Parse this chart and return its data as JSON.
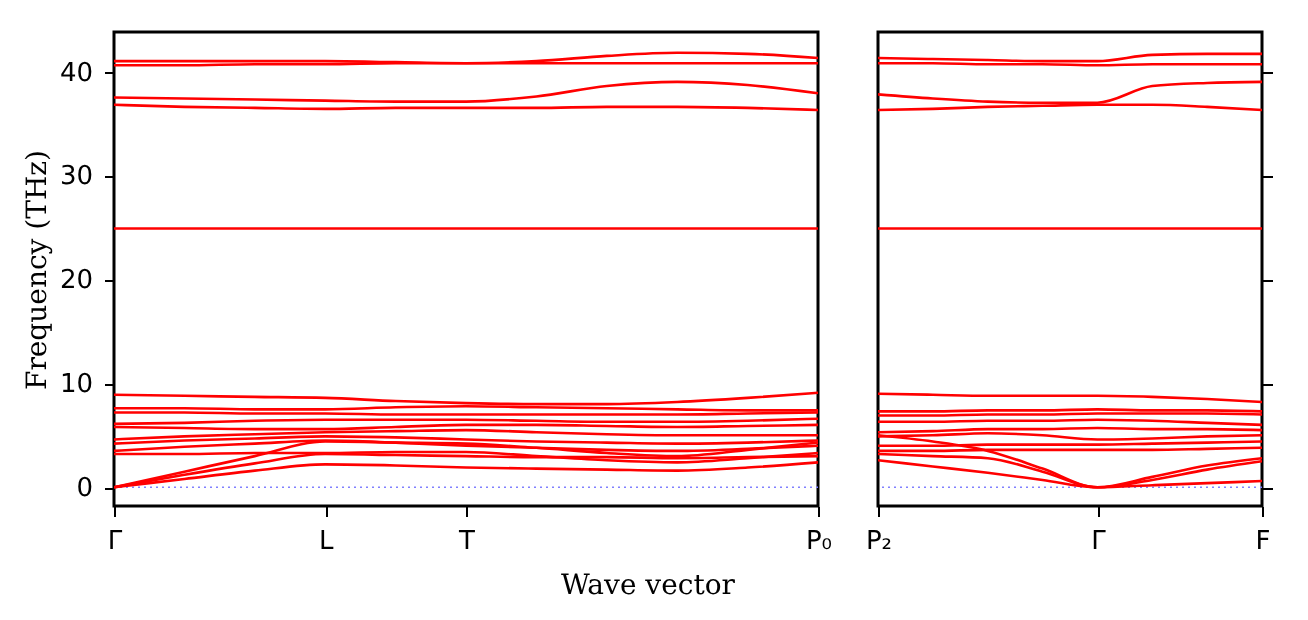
{
  "chart_data": [
    {
      "type": "line",
      "xlabel": "Wave vector",
      "ylabel": "Frequency (THz)",
      "categories": [
        "Γ",
        null,
        null,
        "L",
        null,
        "T",
        null,
        null,
        null,
        null,
        "P₀"
      ],
      "ylim": [
        -1.8,
        43.8
      ],
      "yticks": [
        0,
        10,
        20,
        30,
        40
      ],
      "ref_lines": [
        {
          "axis": "y",
          "value": 0,
          "color": "#8080ff",
          "line_style": "dotted"
        }
      ],
      "series": [
        {
          "color": "#ff0000",
          "values": [
            41.0,
            41.0,
            41.0,
            41.0,
            40.9,
            40.8,
            41.0,
            41.5,
            41.8,
            41.7,
            41.3
          ]
        },
        {
          "color": "#ff0000",
          "values": [
            40.6,
            40.6,
            40.7,
            40.7,
            40.8,
            40.8,
            40.8,
            40.8,
            40.8,
            40.8,
            40.8
          ]
        },
        {
          "color": "#ff0000",
          "values": [
            37.5,
            37.4,
            37.3,
            37.2,
            37.1,
            37.1,
            37.6,
            38.6,
            39.0,
            38.7,
            37.9
          ]
        },
        {
          "color": "#ff0000",
          "values": [
            36.8,
            36.6,
            36.5,
            36.4,
            36.5,
            36.5,
            36.5,
            36.6,
            36.6,
            36.5,
            36.3
          ]
        },
        {
          "color": "#ff0000",
          "values": [
            24.9,
            24.9,
            24.9,
            24.9,
            24.9,
            24.9,
            24.9,
            24.9,
            24.9,
            24.9,
            24.9
          ]
        },
        {
          "color": "#ff0000",
          "values": [
            8.9,
            8.8,
            8.7,
            8.6,
            8.3,
            8.1,
            8.0,
            8.0,
            8.2,
            8.6,
            9.1
          ]
        },
        {
          "color": "#ff0000",
          "values": [
            7.6,
            7.6,
            7.5,
            7.5,
            7.7,
            7.8,
            7.7,
            7.6,
            7.5,
            7.4,
            7.4
          ]
        },
        {
          "color": "#ff0000",
          "values": [
            7.2,
            7.2,
            7.1,
            7.1,
            7.0,
            7.0,
            7.0,
            7.0,
            7.0,
            7.1,
            7.2
          ]
        },
        {
          "color": "#ff0000",
          "values": [
            6.1,
            6.2,
            6.4,
            6.5,
            6.5,
            6.5,
            6.4,
            6.3,
            6.3,
            6.4,
            6.6
          ]
        },
        {
          "color": "#ff0000",
          "values": [
            5.8,
            5.7,
            5.6,
            5.6,
            5.8,
            6.0,
            6.0,
            5.9,
            5.8,
            5.9,
            6.0
          ]
        },
        {
          "color": "#ff0000",
          "values": [
            4.6,
            4.9,
            5.1,
            5.3,
            5.4,
            5.5,
            5.3,
            5.1,
            5.0,
            5.0,
            5.0
          ]
        },
        {
          "color": "#ff0000",
          "values": [
            4.2,
            4.5,
            4.7,
            4.9,
            4.8,
            4.6,
            4.4,
            4.3,
            4.2,
            4.3,
            4.5
          ]
        },
        {
          "color": "#ff0000",
          "values": [
            3.5,
            3.9,
            4.2,
            4.5,
            4.3,
            4.0,
            3.8,
            3.6,
            3.5,
            3.7,
            4.0
          ]
        },
        {
          "color": "#ff0000",
          "values": [
            3.2,
            3.2,
            3.3,
            3.3,
            3.4,
            3.4,
            3.0,
            2.6,
            2.4,
            2.8,
            3.3
          ]
        },
        {
          "color": "#ff0000",
          "values": [
            0,
            1.5,
            3.0,
            4.4,
            4.3,
            4.2,
            3.8,
            3.3,
            3.0,
            3.6,
            4.3
          ]
        },
        {
          "color": "#ff0000",
          "values": [
            0,
            1.2,
            2.3,
            3.2,
            3.1,
            3.0,
            2.9,
            2.9,
            2.8,
            2.9,
            3.0
          ]
        },
        {
          "color": "#ff0000",
          "values": [
            0,
            0.8,
            1.6,
            2.2,
            2.1,
            1.9,
            1.8,
            1.7,
            1.6,
            1.9,
            2.4
          ]
        }
      ]
    },
    {
      "type": "line",
      "categories": [
        "P₂",
        null,
        null,
        null,
        "Γ",
        null,
        null,
        "F"
      ],
      "ylim": [
        -1.8,
        43.8
      ],
      "yticks": [
        0,
        10,
        20,
        30,
        40
      ],
      "tick_labels": "x",
      "ref_lines": [
        {
          "axis": "y",
          "value": 0,
          "color": "#8080ff",
          "line_style": "dotted"
        }
      ],
      "series": [
        {
          "color": "#ff0000",
          "values": [
            41.3,
            41.2,
            41.1,
            41.0,
            41.0,
            41.6,
            41.7,
            41.7
          ]
        },
        {
          "color": "#ff0000",
          "values": [
            40.8,
            40.8,
            40.7,
            40.7,
            40.6,
            40.7,
            40.7,
            40.7
          ]
        },
        {
          "color": "#ff0000",
          "values": [
            37.8,
            37.4,
            37.1,
            37.0,
            37.0,
            38.6,
            38.9,
            39.0
          ]
        },
        {
          "color": "#ff0000",
          "values": [
            36.3,
            36.4,
            36.6,
            36.7,
            36.8,
            36.8,
            36.6,
            36.3
          ]
        },
        {
          "color": "#ff0000",
          "values": [
            24.9,
            24.9,
            24.9,
            24.9,
            24.9,
            24.9,
            24.9,
            24.9
          ]
        },
        {
          "color": "#ff0000",
          "values": [
            9.0,
            8.9,
            8.8,
            8.8,
            8.8,
            8.7,
            8.5,
            8.2
          ]
        },
        {
          "color": "#ff0000",
          "values": [
            7.3,
            7.3,
            7.4,
            7.4,
            7.5,
            7.4,
            7.4,
            7.3
          ]
        },
        {
          "color": "#ff0000",
          "values": [
            6.9,
            6.9,
            7.0,
            7.0,
            7.1,
            7.1,
            7.1,
            7.0
          ]
        },
        {
          "color": "#ff0000",
          "values": [
            6.3,
            6.3,
            6.4,
            6.4,
            6.5,
            6.4,
            6.2,
            6.0
          ]
        },
        {
          "color": "#ff0000",
          "values": [
            5.3,
            5.4,
            5.6,
            5.6,
            5.7,
            5.6,
            5.6,
            5.5
          ]
        },
        {
          "color": "#ff0000",
          "values": [
            4.9,
            5.0,
            5.2,
            5.0,
            4.6,
            4.7,
            4.9,
            5.0
          ]
        },
        {
          "color": "#ff0000",
          "values": [
            4.0,
            4.0,
            4.1,
            4.1,
            4.1,
            4.2,
            4.3,
            4.4
          ]
        },
        {
          "color": "#ff0000",
          "values": [
            3.5,
            3.5,
            3.6,
            3.6,
            3.6,
            3.6,
            3.7,
            3.8
          ]
        },
        {
          "color": "#ff0000",
          "values": [
            2.6,
            2.0,
            1.4,
            0.7,
            0,
            1.0,
            2.1,
            2.8
          ]
        },
        {
          "color": "#ff0000",
          "values": [
            5.0,
            4.4,
            3.5,
            1.8,
            0,
            0.7,
            1.7,
            2.5
          ]
        },
        {
          "color": "#ff0000",
          "values": [
            3.2,
            3.0,
            2.8,
            1.5,
            0,
            0.2,
            0.4,
            0.6
          ]
        }
      ]
    }
  ]
}
